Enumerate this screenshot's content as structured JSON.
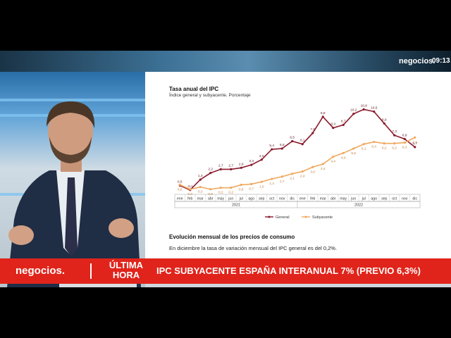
{
  "broadcast": {
    "brand_small": "negocios.",
    "clock": "09:13",
    "ticker": {
      "brand": "negocios.",
      "tag_line1": "ÚLTIMA",
      "tag_line2": "HORA",
      "headline": "IPC SUBYACENTE ESPAÑA INTERANUAL 7% (PREVIO 6,3%)"
    }
  },
  "panel": {
    "chart_title": "Tasa anual del IPC",
    "chart_subtitle": "Índice general y subyacente. Porcentaje",
    "section_title": "Evolución mensual de los precios de consumo",
    "section_text": "En diciembre la tasa de variación mensual del IPC general es del 0,2%."
  },
  "colors": {
    "general": "#8b1a2b",
    "subyacente": "#f0a860",
    "ticker": "#e0241b"
  },
  "chart_data": {
    "type": "line",
    "title": "Tasa anual del IPC",
    "subtitle": "Índice general y subyacente. Porcentaje",
    "categories": [
      "ene",
      "feb",
      "mar",
      "abr",
      "may",
      "jun",
      "jul",
      "ago",
      "sep",
      "oct",
      "nov",
      "dic",
      "ene",
      "feb",
      "mar",
      "abr",
      "may",
      "jun",
      "jul",
      "ago",
      "sep",
      "oct",
      "nov",
      "dic"
    ],
    "year_labels": [
      {
        "label": "2021",
        "start": 0,
        "end": 11
      },
      {
        "label": "2022",
        "start": 12,
        "end": 23
      }
    ],
    "ylim": [
      -0.5,
      11.5
    ],
    "legend_position": "bottom",
    "series": [
      {
        "name": "General",
        "color": "#8b1a2b",
        "values": [
          0.5,
          -0.1,
          1.3,
          2.2,
          2.7,
          2.7,
          2.9,
          3.3,
          4.0,
          5.4,
          5.5,
          6.5,
          6.1,
          7.6,
          9.8,
          8.3,
          8.7,
          10.2,
          10.8,
          10.5,
          8.9,
          7.3,
          6.8,
          5.7
        ],
        "labels": [
          "0,5",
          "-0,1",
          "1,3",
          "2,2",
          "2,7",
          "2,7",
          "2,9",
          "3,3",
          "4,0",
          "5,4",
          "5,5",
          "6,5",
          "6,1",
          "7,6",
          "9,8",
          "8,3",
          "8,7",
          "10,2",
          "10,8",
          "10,5",
          "8,9",
          "7,3",
          "6,8",
          "5,7"
        ]
      },
      {
        "name": "Subyacente",
        "color": "#f0a860",
        "values": [
          0.6,
          0.0,
          0.3,
          0.0,
          0.2,
          0.2,
          0.6,
          0.7,
          1.0,
          1.4,
          1.7,
          2.1,
          2.4,
          3.0,
          3.4,
          4.4,
          4.9,
          5.5,
          6.1,
          6.4,
          6.2,
          6.2,
          6.3,
          7.0
        ],
        "labels": [
          "0,6",
          "0,0",
          "0,3",
          "0,0",
          "0,2",
          "0,2",
          "0,6",
          "0,7",
          "1,0",
          "1,4",
          "1,7",
          "2,1",
          "2,4",
          "3,0",
          "3,4",
          "4,4",
          "4,9",
          "5,5",
          "6,1",
          "6,4",
          "6,2",
          "6,2",
          "6,3",
          "7,0"
        ]
      }
    ]
  }
}
